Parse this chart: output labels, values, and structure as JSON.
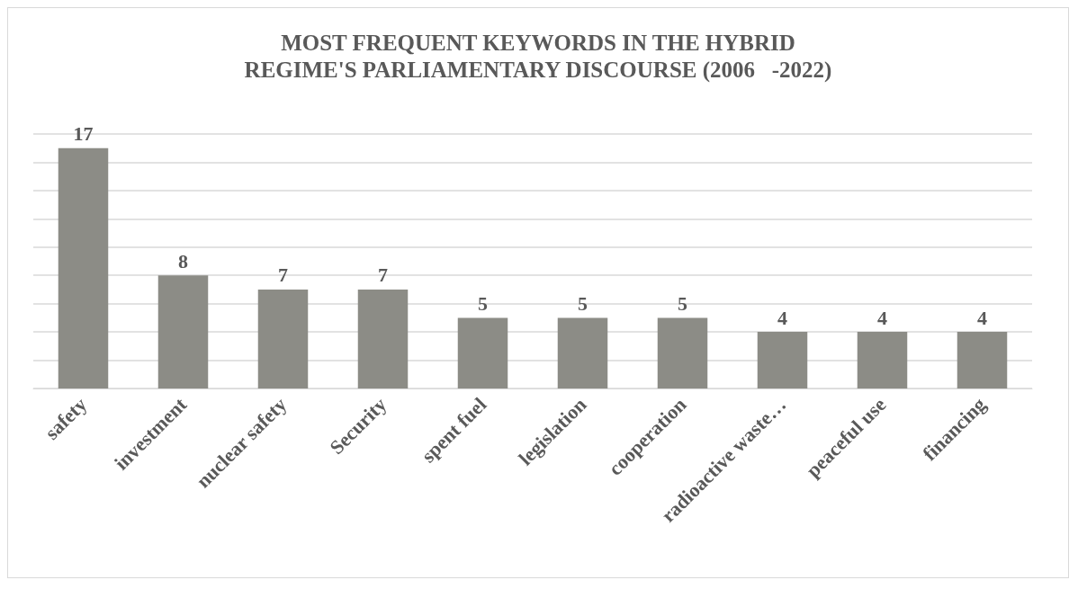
{
  "chart_data": {
    "type": "bar",
    "title": "MOST FREQUENT KEYWORDS IN THE HYBRID\nREGIME'S PARLIAMENTARY DISCOURSE (2006   -2022)",
    "categories": [
      "safety",
      "investment",
      "nuclear safety",
      "Security",
      "spent fuel",
      "legislation",
      "cooperation",
      "radioactive waste…",
      "peaceful use",
      "financing"
    ],
    "values": [
      17,
      8,
      7,
      7,
      5,
      5,
      5,
      4,
      4,
      4
    ],
    "color": "#8c8c86",
    "ylim": [
      0,
      18
    ],
    "yticks": [
      0,
      2,
      4,
      6,
      8,
      10,
      12,
      14,
      16,
      18
    ],
    "grid": "y",
    "tick_labels": "x",
    "data_labels": true
  }
}
